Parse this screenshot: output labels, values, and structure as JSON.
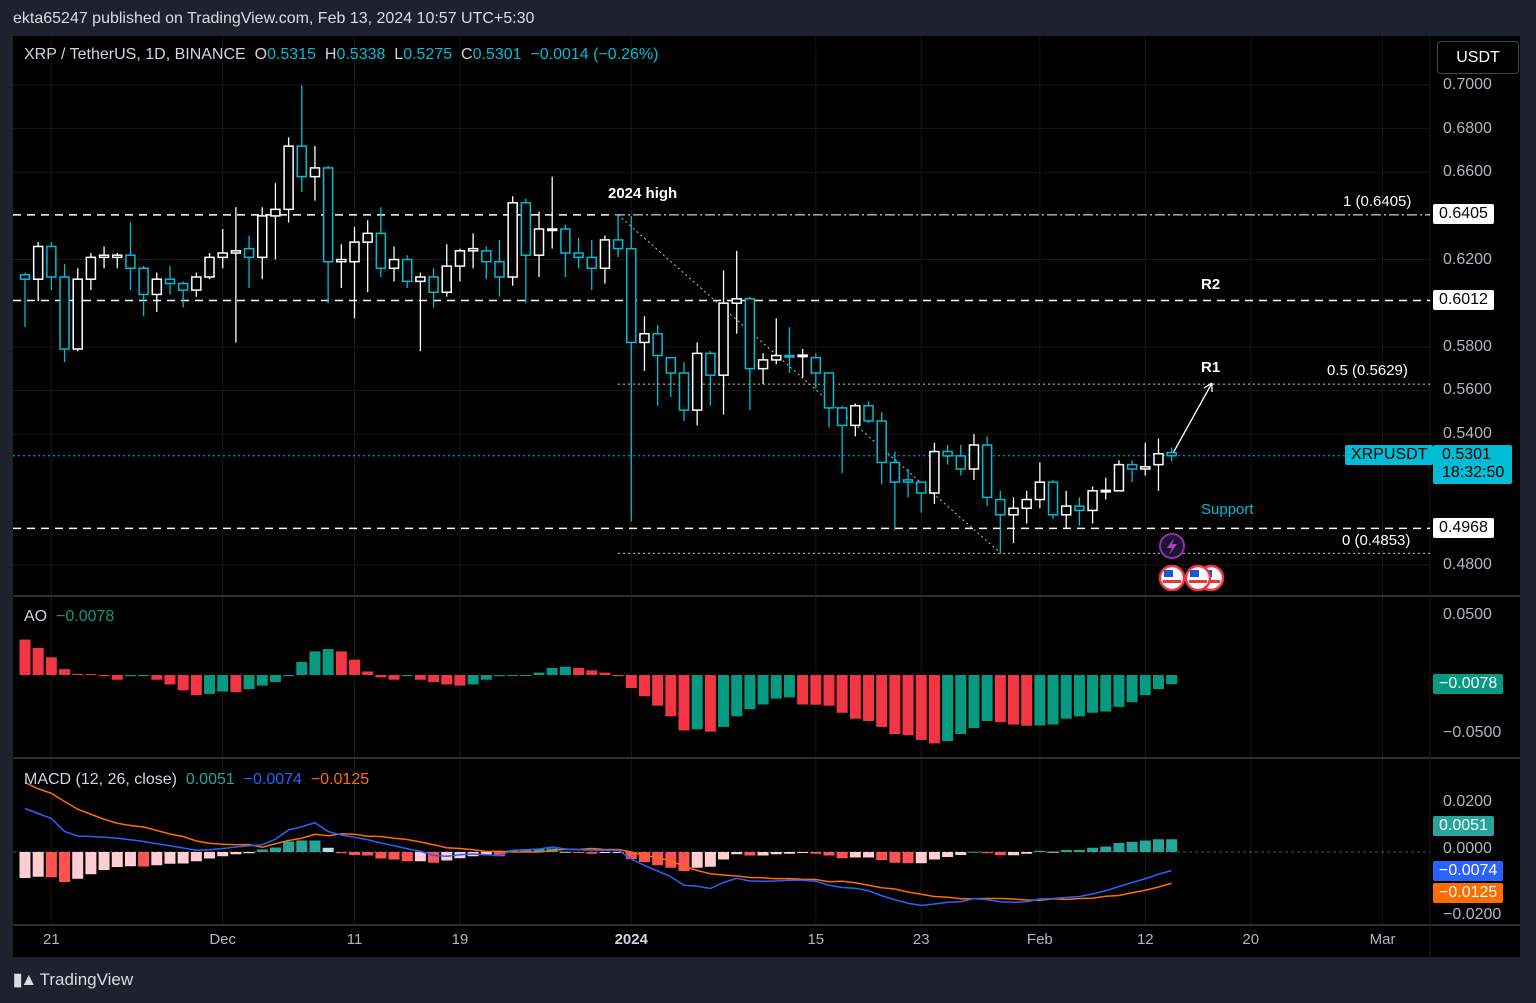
{
  "header": {
    "publisher_line": "ekta65247 published on TradingView.com, Feb 13, 2024 10:57 UTC+5:30"
  },
  "legend": {
    "symbol": "XRP / TetherUS, 1D, BINANCE",
    "o_label": "O",
    "o": "0.5315",
    "h_label": "H",
    "h": "0.5338",
    "l_label": "L",
    "l": "0.5275",
    "c_label": "C",
    "c": "0.5301",
    "change": "−0.0014 (−0.26%)"
  },
  "currency_button": "USDT",
  "price_axis": {
    "ticks": [
      "0.7000",
      "0.6800",
      "0.6600",
      "0.6200",
      "0.5800",
      "0.5600",
      "0.5400",
      "0.4800"
    ],
    "tick_values": [
      0.7,
      0.68,
      0.66,
      0.62,
      0.58,
      0.56,
      0.54,
      0.48
    ],
    "range": [
      0.47,
      0.71
    ]
  },
  "levels": {
    "fib_1": {
      "label": "1 (0.6405)",
      "tag": "0.6405",
      "value": 0.6405
    },
    "r2": {
      "label": "R2",
      "tag": "0.6012",
      "value": 0.6012
    },
    "fib_05": {
      "label": "0.5 (0.5629)",
      "value": 0.5629
    },
    "r1": {
      "label": "R1"
    },
    "support": {
      "label": "Support",
      "tag": "0.4968",
      "value": 0.4968
    },
    "fib_0": {
      "label": "0 (0.4853)",
      "value": 0.4853
    },
    "high_note": "2024 high"
  },
  "last_price": {
    "symbol": "XRPUSDT",
    "price": "0.5301",
    "countdown": "18:32:50",
    "value": 0.5301
  },
  "x_axis": {
    "labels": [
      "21",
      "Dec",
      "11",
      "19",
      "2024",
      "15",
      "23",
      "Feb",
      "12",
      "20",
      "Mar"
    ],
    "label_bar_index": [
      3,
      16,
      26,
      34,
      47,
      61,
      69,
      78,
      86,
      94,
      104
    ]
  },
  "colors": {
    "up": "#ffffff",
    "down": "#00bcd4",
    "ao_up": "#089981",
    "ao_down": "#f23645",
    "macd": "#2962ff",
    "signal": "#ff6d00",
    "hist_pos_up": "#26a69a",
    "hist_pos_down": "#b2dfdb",
    "hist_neg_down": "#ff5252",
    "hist_neg_up": "#ffcdd2"
  },
  "ao": {
    "label": "AO",
    "value": "−0.0078",
    "tag": "−0.0078",
    "ticks": [
      "0.0500",
      "−0.0500"
    ]
  },
  "macd": {
    "label": "MACD (12, 26, close)",
    "hist_value": "0.0051",
    "macd_value": "−0.0074",
    "signal_value": "−0.0125",
    "ticks": [
      "0.0200",
      "0.0000",
      "−0.0200"
    ]
  },
  "footer": {
    "brand": "TradingView"
  },
  "chart_data": [
    {
      "type": "candlestick",
      "title": "XRP / TetherUS, 1D, BINANCE",
      "ylim": [
        0.47,
        0.71
      ],
      "ohlc": [
        [
          0.613,
          0.614,
          0.589,
          0.611
        ],
        [
          0.611,
          0.628,
          0.601,
          0.626
        ],
        [
          0.626,
          0.628,
          0.606,
          0.612
        ],
        [
          0.612,
          0.618,
          0.573,
          0.579
        ],
        [
          0.579,
          0.616,
          0.578,
          0.611
        ],
        [
          0.611,
          0.623,
          0.606,
          0.621
        ],
        [
          0.621,
          0.626,
          0.616,
          0.622
        ],
        [
          0.621,
          0.623,
          0.616,
          0.622
        ],
        [
          0.622,
          0.637,
          0.606,
          0.616
        ],
        [
          0.616,
          0.617,
          0.594,
          0.604
        ],
        [
          0.604,
          0.614,
          0.596,
          0.611
        ],
        [
          0.611,
          0.617,
          0.604,
          0.609
        ],
        [
          0.609,
          0.61,
          0.598,
          0.606
        ],
        [
          0.606,
          0.614,
          0.603,
          0.612
        ],
        [
          0.612,
          0.623,
          0.611,
          0.621
        ],
        [
          0.621,
          0.634,
          0.616,
          0.623
        ],
        [
          0.623,
          0.644,
          0.582,
          0.624
        ],
        [
          0.625,
          0.631,
          0.607,
          0.621
        ],
        [
          0.621,
          0.644,
          0.611,
          0.64
        ],
        [
          0.64,
          0.655,
          0.62,
          0.643
        ],
        [
          0.643,
          0.676,
          0.637,
          0.672
        ],
        [
          0.672,
          0.7,
          0.651,
          0.658
        ],
        [
          0.658,
          0.672,
          0.647,
          0.662
        ],
        [
          0.662,
          0.663,
          0.6,
          0.619
        ],
        [
          0.619,
          0.627,
          0.607,
          0.62
        ],
        [
          0.619,
          0.635,
          0.593,
          0.628
        ],
        [
          0.628,
          0.638,
          0.605,
          0.632
        ],
        [
          0.632,
          0.644,
          0.612,
          0.616
        ],
        [
          0.616,
          0.626,
          0.61,
          0.62
        ],
        [
          0.62,
          0.622,
          0.607,
          0.61
        ],
        [
          0.61,
          0.614,
          0.578,
          0.612
        ],
        [
          0.612,
          0.616,
          0.598,
          0.605
        ],
        [
          0.605,
          0.627,
          0.603,
          0.617
        ],
        [
          0.617,
          0.625,
          0.61,
          0.624
        ],
        [
          0.624,
          0.632,
          0.616,
          0.625
        ],
        [
          0.624,
          0.626,
          0.611,
          0.619
        ],
        [
          0.619,
          0.629,
          0.603,
          0.612
        ],
        [
          0.612,
          0.649,
          0.608,
          0.646
        ],
        [
          0.646,
          0.648,
          0.6,
          0.622
        ],
        [
          0.622,
          0.642,
          0.612,
          0.634
        ],
        [
          0.634,
          0.658,
          0.625,
          0.634
        ],
        [
          0.634,
          0.636,
          0.612,
          0.623
        ],
        [
          0.623,
          0.63,
          0.616,
          0.621
        ],
        [
          0.621,
          0.629,
          0.606,
          0.616
        ],
        [
          0.616,
          0.631,
          0.609,
          0.629
        ],
        [
          0.629,
          0.6405,
          0.621,
          0.625
        ],
        [
          0.625,
          0.64,
          0.5,
          0.582
        ],
        [
          0.582,
          0.594,
          0.569,
          0.586
        ],
        [
          0.586,
          0.59,
          0.553,
          0.576
        ],
        [
          0.575,
          0.575,
          0.557,
          0.568
        ],
        [
          0.568,
          0.573,
          0.546,
          0.551
        ],
        [
          0.551,
          0.582,
          0.544,
          0.577
        ],
        [
          0.577,
          0.578,
          0.553,
          0.567
        ],
        [
          0.567,
          0.615,
          0.549,
          0.6
        ],
        [
          0.6,
          0.624,
          0.586,
          0.602
        ],
        [
          0.602,
          0.603,
          0.551,
          0.57
        ],
        [
          0.57,
          0.577,
          0.563,
          0.574
        ],
        [
          0.574,
          0.593,
          0.572,
          0.576
        ],
        [
          0.576,
          0.589,
          0.568,
          0.5758
        ],
        [
          0.576,
          0.579,
          0.566,
          0.5762
        ],
        [
          0.575,
          0.577,
          0.561,
          0.568
        ],
        [
          0.568,
          0.568,
          0.543,
          0.552
        ],
        [
          0.552,
          0.553,
          0.522,
          0.544
        ],
        [
          0.544,
          0.554,
          0.539,
          0.553
        ],
        [
          0.553,
          0.555,
          0.545,
          0.546
        ],
        [
          0.546,
          0.55,
          0.517,
          0.527
        ],
        [
          0.527,
          0.532,
          0.496,
          0.518
        ],
        [
          0.519,
          0.524,
          0.511,
          0.518
        ],
        [
          0.518,
          0.518,
          0.504,
          0.513
        ],
        [
          0.513,
          0.536,
          0.508,
          0.532
        ],
        [
          0.532,
          0.535,
          0.526,
          0.53
        ],
        [
          0.53,
          0.535,
          0.521,
          0.524
        ],
        [
          0.524,
          0.54,
          0.519,
          0.535
        ],
        [
          0.535,
          0.539,
          0.507,
          0.511
        ],
        [
          0.51,
          0.514,
          0.4853,
          0.503
        ],
        [
          0.503,
          0.511,
          0.49,
          0.506
        ],
        [
          0.506,
          0.514,
          0.499,
          0.51
        ],
        [
          0.51,
          0.527,
          0.506,
          0.518
        ],
        [
          0.518,
          0.519,
          0.501,
          0.503
        ],
        [
          0.503,
          0.514,
          0.497,
          0.507
        ],
        [
          0.507,
          0.511,
          0.498,
          0.505
        ],
        [
          0.505,
          0.516,
          0.499,
          0.514
        ],
        [
          0.514,
          0.52,
          0.51,
          0.5142
        ],
        [
          0.514,
          0.528,
          0.514,
          0.526
        ],
        [
          0.526,
          0.528,
          0.518,
          0.524
        ],
        [
          0.524,
          0.536,
          0.521,
          0.525
        ],
        [
          0.526,
          0.538,
          0.514,
          0.531
        ],
        [
          0.5315,
          0.5338,
          0.5275,
          0.5301
        ]
      ]
    },
    {
      "type": "bar",
      "title": "AO",
      "ylim": [
        -0.07,
        0.07
      ],
      "values": [
        0.03,
        0.023,
        0.015,
        0.005,
        0.001,
        0.0008,
        -0.001,
        -0.004,
        -0.001,
        -0.001,
        -0.004,
        -0.008,
        -0.013,
        -0.017,
        -0.016,
        -0.014,
        -0.0145,
        -0.012,
        -0.009,
        -0.006,
        -0.001,
        0.011,
        0.02,
        0.022,
        0.02,
        0.013,
        0.003,
        -0.002,
        -0.004,
        -0.001,
        -0.004,
        -0.006,
        -0.008,
        -0.009,
        -0.008,
        -0.004,
        -0.001,
        -0.0008,
        -0.0006,
        0.002,
        0.006,
        0.007,
        0.006,
        0.004,
        0.002,
        -0.001,
        -0.011,
        -0.018,
        -0.026,
        -0.035,
        -0.047,
        -0.046,
        -0.048,
        -0.044,
        -0.035,
        -0.029,
        -0.025,
        -0.02,
        -0.019,
        -0.025,
        -0.0252,
        -0.026,
        -0.032,
        -0.037,
        -0.039,
        -0.044,
        -0.05,
        -0.051,
        -0.055,
        -0.058,
        -0.056,
        -0.05,
        -0.045,
        -0.039,
        -0.04,
        -0.042,
        -0.043,
        -0.0428,
        -0.042,
        -0.037,
        -0.035,
        -0.032,
        -0.031,
        -0.027,
        -0.023,
        -0.017,
        -0.012,
        -0.0078
      ]
    },
    {
      "type": "line",
      "title": "MACD (12, 26, close)",
      "ylim": [
        -0.03,
        0.03
      ],
      "histogram": [
        -0.0104,
        -0.0099,
        -0.0101,
        -0.012,
        -0.0107,
        -0.0089,
        -0.0072,
        -0.006,
        -0.0057,
        -0.0058,
        -0.0053,
        -0.0047,
        -0.0046,
        -0.0037,
        -0.0026,
        -0.0017,
        -0.0009,
        -0.0005,
        0.001,
        0.0018,
        0.0042,
        0.0046,
        0.0046,
        0.0017,
        -0.0005,
        -0.0012,
        -0.0014,
        -0.0026,
        -0.003,
        -0.0037,
        -0.0037,
        -0.0043,
        -0.0034,
        -0.0025,
        -0.0017,
        -0.0013,
        -0.0017,
        0.0007,
        0.0009,
        0.0012,
        0.0014,
        0.0001,
        -0.0001,
        -0.0007,
        -0.0003,
        -0.0003,
        -0.0028,
        -0.004,
        -0.0053,
        -0.0063,
        -0.0076,
        -0.0063,
        -0.0059,
        -0.003,
        -0.0009,
        -0.0014,
        -0.0014,
        -0.0009,
        -0.0007,
        -0.0004,
        -0.0007,
        -0.0014,
        -0.0025,
        -0.0022,
        -0.0022,
        -0.0032,
        -0.0043,
        -0.0045,
        -0.0045,
        -0.003,
        -0.002,
        -0.0012,
        0.0001,
        -0.0005,
        -0.0013,
        -0.0013,
        -0.0007,
        0.0005,
        0.0001,
        0.0008,
        0.0008,
        0.0017,
        0.0022,
        0.0036,
        0.0041,
        0.0046,
        0.0051,
        0.0051
      ],
      "macd": [
        0.0174,
        0.0154,
        0.0134,
        0.0082,
        0.0064,
        0.0062,
        0.0059,
        0.0055,
        0.0049,
        0.0042,
        0.0033,
        0.0025,
        0.0016,
        0.0007,
        0.0009,
        0.0014,
        0.002,
        0.0025,
        0.0029,
        0.0051,
        0.0088,
        0.0101,
        0.0117,
        0.0082,
        0.0068,
        0.0059,
        0.0049,
        0.0036,
        0.0025,
        0.0013,
        0.0003,
        -0.0014,
        -0.0017,
        -0.0011,
        -0.0008,
        -0.0011,
        -0.0014,
        0.0007,
        0.0009,
        0.0012,
        0.002,
        0.0012,
        0.0009,
        0.0007,
        0.0007,
        0.0007,
        -0.0028,
        -0.0054,
        -0.0076,
        -0.0099,
        -0.0133,
        -0.0137,
        -0.0146,
        -0.0122,
        -0.0105,
        -0.0116,
        -0.0117,
        -0.0116,
        -0.0113,
        -0.0113,
        -0.0117,
        -0.0133,
        -0.0142,
        -0.0145,
        -0.0155,
        -0.0175,
        -0.0191,
        -0.0205,
        -0.0214,
        -0.0208,
        -0.0201,
        -0.0199,
        -0.0186,
        -0.0191,
        -0.0199,
        -0.0201,
        -0.0199,
        -0.0188,
        -0.0186,
        -0.0182,
        -0.0178,
        -0.0168,
        -0.0155,
        -0.0138,
        -0.0122,
        -0.0107,
        -0.0089,
        -0.0074
      ]
    }
  ]
}
